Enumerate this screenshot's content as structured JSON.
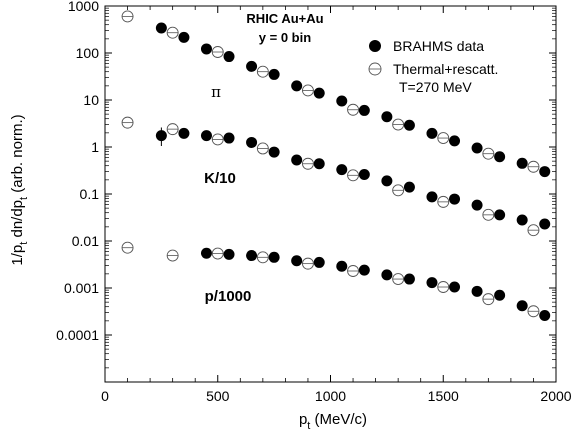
{
  "chart_data": {
    "type": "scatter",
    "xlabel": "p",
    "xlabel_sub": "t",
    "xlabel_unit": " (MeV/c)",
    "ylabel_parts": [
      "1/p",
      "t",
      " dn/dp",
      "t",
      " (arb. norm.)"
    ],
    "xlim": [
      0,
      2000
    ],
    "ylim": [
      1e-05,
      1000
    ],
    "yscale": "log",
    "x_ticks": [
      "0",
      "500",
      "1000",
      "1500",
      "2000"
    ],
    "y_ticks": [
      "1000",
      "100",
      "10",
      "1",
      "0.1",
      "0.01",
      "0.001",
      "0.0001"
    ],
    "y_tick_values": [
      1000,
      100,
      10,
      1,
      0.1,
      0.01,
      0.001,
      0.0001
    ],
    "annotations": {
      "header_line1": "RHIC Au+Au",
      "header_line2": "y = 0 bin",
      "pion_label": "π",
      "kaon_label": "K/10",
      "proton_label": "p/1000"
    },
    "legend": {
      "placement": "top-right",
      "entries": [
        {
          "name": "BRAHMS data",
          "marker": "filled-circle"
        },
        {
          "name": "Thermal+rescatt.",
          "marker": "open-circle"
        },
        {
          "name": "T=270 MeV",
          "marker": "none"
        }
      ]
    },
    "series": [
      {
        "name": "BRAHMS data",
        "group": "pi",
        "marker": "filled",
        "x": [
          250,
          350,
          450,
          550,
          650,
          750,
          850,
          950,
          1050,
          1150,
          1250,
          1350,
          1450,
          1550,
          1650,
          1750,
          1850,
          1950
        ],
        "y": [
          340,
          215,
          122,
          84,
          52,
          35,
          20,
          14,
          9.5,
          6.0,
          4.4,
          2.9,
          1.95,
          1.35,
          0.95,
          0.62,
          0.45,
          0.3
        ]
      },
      {
        "name": "Thermal+rescatt.",
        "group": "pi",
        "marker": "open",
        "x": [
          100,
          300,
          500,
          700,
          900,
          1100,
          1300,
          1500,
          1700,
          1900
        ],
        "y": [
          600,
          270,
          105,
          40,
          16,
          6.2,
          3.0,
          1.55,
          0.72,
          0.38
        ]
      },
      {
        "name": "BRAHMS data",
        "group": "K",
        "marker": "filled",
        "x": [
          250,
          350,
          450,
          550,
          650,
          750,
          850,
          950,
          1050,
          1150,
          1250,
          1350,
          1450,
          1550,
          1650,
          1750,
          1850,
          1950
        ],
        "y": [
          1.75,
          1.95,
          1.75,
          1.55,
          1.25,
          0.78,
          0.53,
          0.44,
          0.33,
          0.26,
          0.19,
          0.14,
          0.087,
          0.078,
          0.058,
          0.036,
          0.028,
          0.023
        ]
      },
      {
        "name": "Thermal+rescatt.",
        "group": "K",
        "marker": "open",
        "x": [
          100,
          300,
          500,
          700,
          900,
          1100,
          1300,
          1500,
          1700,
          1900
        ],
        "y": [
          3.3,
          2.4,
          1.45,
          0.93,
          0.44,
          0.25,
          0.12,
          0.068,
          0.036,
          0.017
        ]
      },
      {
        "name": "BRAHMS data",
        "group": "p",
        "marker": "filled",
        "x": [
          450,
          550,
          650,
          750,
          850,
          950,
          1050,
          1150,
          1250,
          1350,
          1450,
          1550,
          1650,
          1750,
          1850,
          1950
        ],
        "y": [
          0.0055,
          0.0052,
          0.0049,
          0.0045,
          0.0038,
          0.0035,
          0.0029,
          0.0024,
          0.0019,
          0.00155,
          0.0013,
          0.00105,
          0.00085,
          0.0007,
          0.00042,
          0.00026
        ]
      },
      {
        "name": "Thermal+rescatt.",
        "group": "p",
        "marker": "open",
        "x": [
          100,
          300,
          500,
          700,
          900,
          1100,
          1300,
          1500,
          1700,
          1900
        ],
        "y": [
          0.0072,
          0.0049,
          0.0054,
          0.0045,
          0.0033,
          0.0023,
          0.00155,
          0.00105,
          0.00058,
          0.00032
        ]
      }
    ],
    "error_bar_hint": {
      "x": 250,
      "y_low": 1.05,
      "y_high": 2.6
    }
  }
}
